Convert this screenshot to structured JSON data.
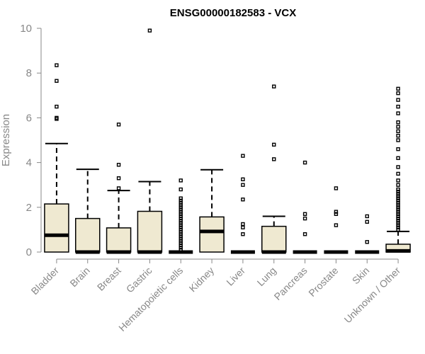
{
  "chart_data": {
    "type": "box",
    "title": "ENSG00000182583 - VCX",
    "xlabel": "",
    "ylabel": "Expression",
    "ylim": [
      0,
      10
    ],
    "yticks": [
      0,
      2,
      4,
      6,
      8,
      10
    ],
    "grid": false,
    "box_fill": "#efe9d1",
    "categories": [
      "Bladder",
      "Brain",
      "Breast",
      "Gastric",
      "Hematopoietic cells",
      "Kidney",
      "Liver",
      "Lung",
      "Pancreas",
      "Prostate",
      "Skin",
      "Unknown / Other"
    ],
    "boxes": [
      {
        "q1": 0,
        "median": 0.75,
        "q3": 2.15,
        "whisker_low": 0,
        "whisker_high": 4.85,
        "outliers": [
          5.95,
          6.0,
          6.5,
          7.65,
          8.35
        ]
      },
      {
        "q1": 0,
        "median": 0,
        "q3": 1.5,
        "whisker_low": 0,
        "whisker_high": 3.7,
        "outliers": []
      },
      {
        "q1": 0,
        "median": 0,
        "q3": 1.08,
        "whisker_low": 0,
        "whisker_high": 2.75,
        "outliers": [
          2.85,
          3.3,
          3.9,
          5.7
        ]
      },
      {
        "q1": 0,
        "median": 0,
        "q3": 1.82,
        "whisker_low": 0,
        "whisker_high": 3.15,
        "outliers": [
          9.9
        ]
      },
      {
        "q1": 0,
        "median": 0,
        "q3": 0,
        "whisker_low": 0,
        "whisker_high": 0,
        "outliers": [
          0.1,
          0.2,
          0.3,
          0.4,
          0.5,
          0.6,
          0.7,
          0.8,
          0.9,
          1.0,
          1.1,
          1.2,
          1.3,
          1.4,
          1.5,
          1.6,
          1.7,
          1.8,
          1.9,
          2.0,
          2.1,
          2.2,
          2.3,
          2.4,
          2.8,
          3.2
        ]
      },
      {
        "q1": 0,
        "median": 0.92,
        "q3": 1.57,
        "whisker_low": 0,
        "whisker_high": 3.68,
        "outliers": []
      },
      {
        "q1": 0,
        "median": 0,
        "q3": 0,
        "whisker_low": 0,
        "whisker_high": 0,
        "outliers": [
          0.8,
          1.1,
          1.25,
          2.35,
          3.0,
          3.25,
          4.3
        ]
      },
      {
        "q1": 0,
        "median": 0,
        "q3": 1.15,
        "whisker_low": 0,
        "whisker_high": 1.6,
        "outliers": [
          4.15,
          4.8,
          7.4
        ]
      },
      {
        "q1": 0,
        "median": 0,
        "q3": 0,
        "whisker_low": 0,
        "whisker_high": 0,
        "outliers": [
          0.8,
          1.5,
          1.7,
          4.0
        ]
      },
      {
        "q1": 0,
        "median": 0,
        "q3": 0,
        "whisker_low": 0,
        "whisker_high": 0,
        "outliers": [
          1.2,
          1.7,
          1.8,
          2.85
        ]
      },
      {
        "q1": 0,
        "median": 0,
        "q3": 0,
        "whisker_low": 0,
        "whisker_high": 0,
        "outliers": [
          0.45,
          1.35,
          1.6
        ]
      },
      {
        "q1": 0,
        "median": 0.05,
        "q3": 0.35,
        "whisker_low": 0,
        "whisker_high": 0.92,
        "outliers": [
          1.0,
          1.1,
          1.2,
          1.3,
          1.4,
          1.5,
          1.6,
          1.7,
          1.8,
          1.9,
          2.0,
          2.1,
          2.2,
          2.3,
          2.4,
          2.5,
          2.6,
          2.7,
          2.8,
          3.0,
          3.2,
          3.5,
          3.8,
          4.2,
          4.6,
          5.0,
          5.2,
          5.4,
          5.6,
          5.8,
          6.2,
          6.5,
          6.8,
          7.1,
          7.3
        ]
      }
    ]
  }
}
